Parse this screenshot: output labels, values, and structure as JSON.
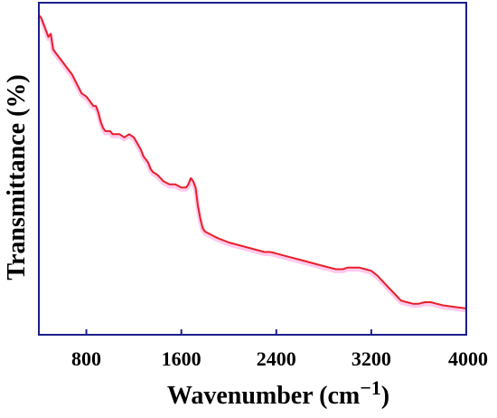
{
  "chart_data": {
    "type": "line",
    "title": "",
    "xlabel": "Wavenumber (cm−1)",
    "ylabel": "Transmittance (%)",
    "xlim": [
      400,
      4000
    ],
    "ylim": [
      0,
      100
    ],
    "xticks": [
      "800",
      "1600",
      "2400",
      "3200",
      "4000"
    ],
    "grid": false,
    "legend": "none",
    "frame_color": "#1b1f8a",
    "series": [
      {
        "color": "#e8202a",
        "shadow_color": "#ff8ad8",
        "x": [
          400,
          420,
          440,
          460,
          480,
          500,
          520,
          540,
          560,
          580,
          600,
          640,
          680,
          720,
          760,
          800,
          840,
          860,
          880,
          900,
          920,
          940,
          960,
          980,
          1000,
          1020,
          1040,
          1080,
          1120,
          1160,
          1200,
          1230,
          1260,
          1280,
          1300,
          1320,
          1340,
          1360,
          1400,
          1450,
          1500,
          1550,
          1600,
          1640,
          1660,
          1680,
          1700,
          1720,
          1740,
          1760,
          1780,
          1800,
          1850,
          1900,
          2000,
          2100,
          2200,
          2300,
          2350,
          2400,
          2500,
          2600,
          2700,
          2800,
          2900,
          2960,
          3000,
          3050,
          3100,
          3150,
          3200,
          3250,
          3300,
          3350,
          3400,
          3450,
          3500,
          3550,
          3600,
          3650,
          3700,
          3750,
          3800,
          3900,
          4000
        ],
        "y": [
          99,
          98,
          96,
          94,
          92,
          93,
          88,
          87,
          86,
          85,
          84,
          82,
          80,
          77,
          74,
          73,
          71,
          70,
          70,
          68,
          65,
          63,
          62,
          62,
          62,
          61,
          61,
          61,
          60,
          61,
          60,
          58,
          56,
          54,
          53,
          52,
          50,
          49,
          48,
          46,
          45,
          45,
          44,
          44,
          45,
          47,
          46,
          44,
          38,
          34,
          31,
          30,
          29,
          28,
          26.5,
          25.5,
          24.5,
          23.5,
          23.5,
          23,
          22,
          21,
          20,
          19,
          18,
          18,
          18.5,
          18.5,
          18.5,
          18,
          17.5,
          16,
          14,
          12,
          10,
          8,
          7.5,
          7,
          7,
          7.5,
          7.5,
          7,
          6.5,
          6,
          5.5
        ]
      }
    ]
  }
}
